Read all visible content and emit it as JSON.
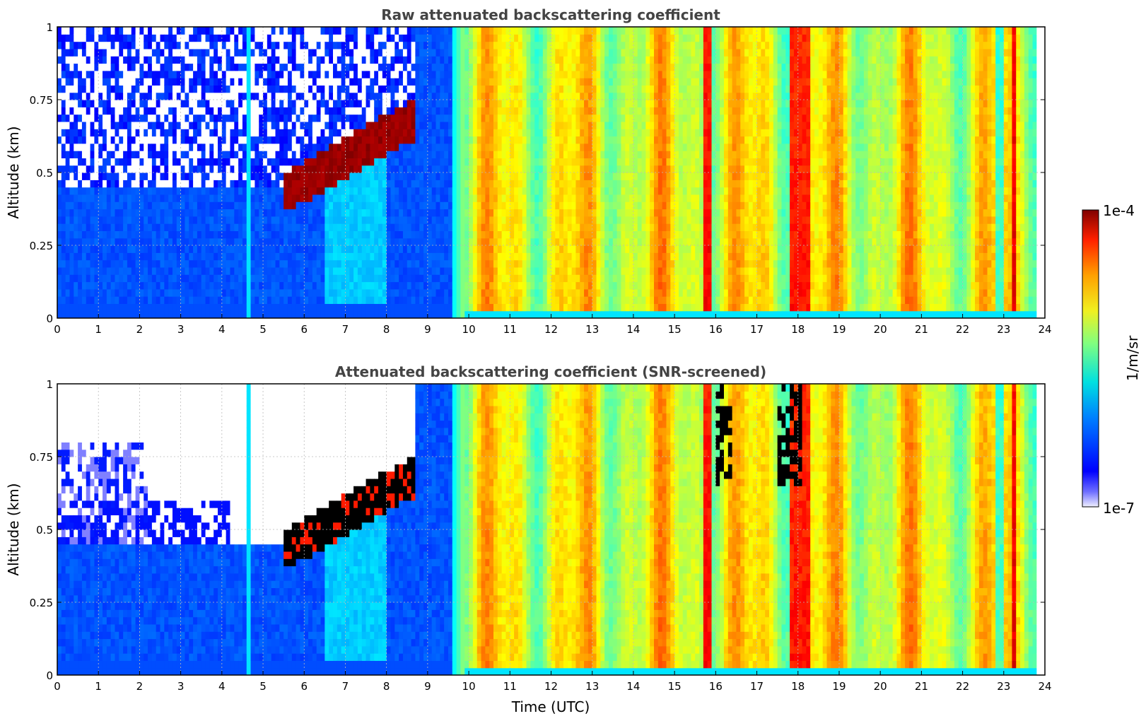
{
  "chart_data": [
    {
      "type": "heatmap",
      "title": "Raw attenuated backscattering coefficient",
      "xlabel": "",
      "ylabel": "Altitude (km)",
      "xlim": [
        0,
        24
      ],
      "ylim": [
        0,
        1
      ],
      "x_ticks": [
        "0",
        "1",
        "2",
        "3",
        "4",
        "5",
        "6",
        "7",
        "8",
        "9",
        "10",
        "11",
        "12",
        "13",
        "14",
        "15",
        "16",
        "17",
        "18",
        "19",
        "20",
        "21",
        "22",
        "23",
        "24"
      ],
      "y_ticks": [
        "0",
        "0.25",
        "0.5",
        "0.75",
        "1"
      ],
      "grid": true,
      "screened": false
    },
    {
      "type": "heatmap",
      "title": "Attenuated backscattering coefficient (SNR-screened)",
      "xlabel": "Time (UTC)",
      "ylabel": "Altitude (km)",
      "xlim": [
        0,
        24
      ],
      "ylim": [
        0,
        1
      ],
      "x_ticks": [
        "0",
        "1",
        "2",
        "3",
        "4",
        "5",
        "6",
        "7",
        "8",
        "9",
        "10",
        "11",
        "12",
        "13",
        "14",
        "15",
        "16",
        "17",
        "18",
        "19",
        "20",
        "21",
        "22",
        "23",
        "24"
      ],
      "y_ticks": [
        "0",
        "0.25",
        "0.5",
        "0.75",
        "1"
      ],
      "grid": true,
      "screened": true
    }
  ],
  "colorbar": {
    "label": "1/m/sr",
    "max_label": "1e-4",
    "min_label": "1e-7",
    "scale": "log",
    "colormap": "jet",
    "range": [
      1e-07,
      0.0001
    ]
  },
  "colors": {
    "low": "#0a14ff",
    "mid": "#f5f512",
    "high": "#800000",
    "screened_cloud": "#000000",
    "masked": "#ffffff"
  }
}
